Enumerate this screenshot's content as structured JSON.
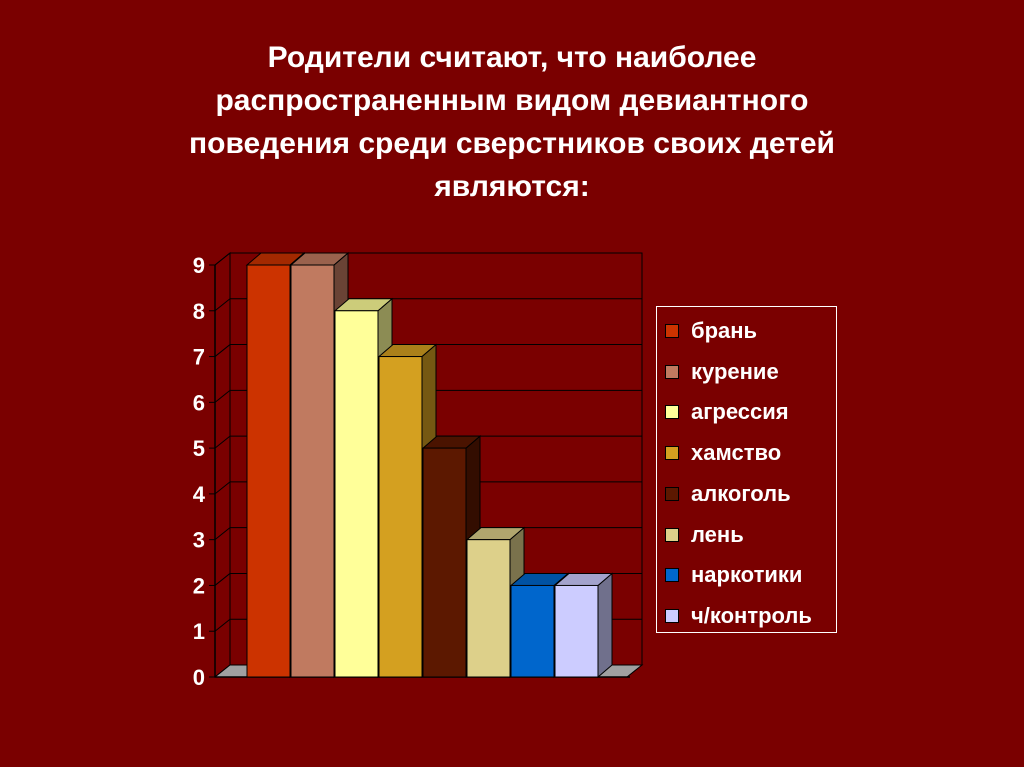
{
  "slide": {
    "title_lines": [
      "Родители считают, что наиболее",
      "распространенным видом девиантного",
      "поведения среди сверстников своих детей",
      "являются:"
    ]
  },
  "chart_data": {
    "type": "bar",
    "title": "Родители считают, что наиболее распространенным видом девиантного поведения среди сверстников своих детей являются:",
    "categories": [
      ""
    ],
    "series": [
      {
        "name": "брань",
        "values": [
          9
        ],
        "color": "#cc3300"
      },
      {
        "name": "курение",
        "values": [
          9
        ],
        "color": "#c07a60"
      },
      {
        "name": "агрессия",
        "values": [
          8
        ],
        "color": "#ffff99"
      },
      {
        "name": "хамство",
        "values": [
          7
        ],
        "color": "#d4a020"
      },
      {
        "name": "алкоголь",
        "values": [
          5
        ],
        "color": "#5c1800"
      },
      {
        "name": "лень",
        "values": [
          3
        ],
        "color": "#ddd08a"
      },
      {
        "name": "наркотики",
        "values": [
          2
        ],
        "color": "#0066cc"
      },
      {
        "name": "ч/контроль",
        "values": [
          2
        ],
        "color": "#ccccff"
      }
    ],
    "ylim": [
      0,
      9
    ],
    "yticks": [
      "0",
      "1",
      "2",
      "3",
      "4",
      "5",
      "6",
      "7",
      "8",
      "9"
    ],
    "grid": true,
    "legend": "right",
    "style_3d": true
  }
}
